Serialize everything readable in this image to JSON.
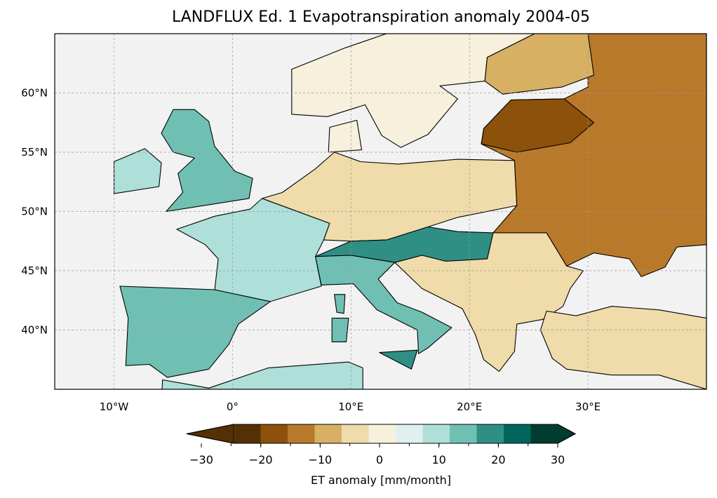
{
  "title": "LANDFLUX Ed. 1 Evapotranspiration anomaly 2004-05",
  "map": {
    "projection": "PlateCarree",
    "extent_lon": [
      -15,
      40
    ],
    "extent_lat": [
      35,
      65
    ],
    "gridlines": true,
    "background_color": "#f2f2f2",
    "lon_ticks": [
      {
        "value": -10,
        "label": "10°W"
      },
      {
        "value": 0,
        "label": "0°"
      },
      {
        "value": 10,
        "label": "10°E"
      },
      {
        "value": 20,
        "label": "20°E"
      },
      {
        "value": 30,
        "label": "30°E"
      }
    ],
    "lat_ticks": [
      {
        "value": 40,
        "label": "40°N"
      },
      {
        "value": 45,
        "label": "45°N"
      },
      {
        "value": 50,
        "label": "50°N"
      },
      {
        "value": 55,
        "label": "55°N"
      },
      {
        "value": 60,
        "label": "60°N"
      }
    ]
  },
  "colorbar": {
    "label": "ET anomaly [mm/month]",
    "colormap": "BrBG",
    "range": [
      -30,
      30
    ],
    "extend": "both",
    "bounds": [
      -30,
      -25,
      -20,
      -15,
      -10,
      -5,
      0,
      5,
      10,
      15,
      20,
      25,
      30
    ],
    "colors": [
      "#543005",
      "#8c510a",
      "#b8792a",
      "#d8b064",
      "#f0dbaa",
      "#f6f0dc",
      "#e0f0ee",
      "#aedfd8",
      "#6fc0b2",
      "#2f8f85",
      "#01665e",
      "#003c30"
    ],
    "under_color": "#543005",
    "over_color": "#003c30",
    "ticks": [
      {
        "value": -30,
        "label": "−30"
      },
      {
        "value": -20,
        "label": "−20"
      },
      {
        "value": -10,
        "label": "−10"
      },
      {
        "value": 0,
        "label": "0"
      },
      {
        "value": 10,
        "label": "10"
      },
      {
        "value": 20,
        "label": "20"
      },
      {
        "value": 30,
        "label": "30"
      }
    ]
  }
}
